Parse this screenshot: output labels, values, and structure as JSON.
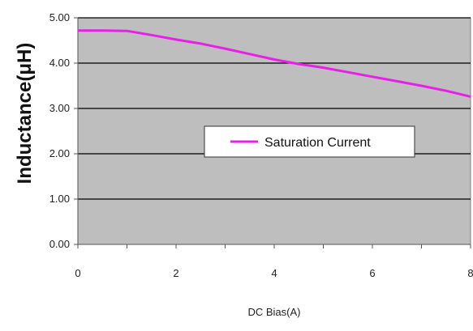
{
  "chart_data": {
    "type": "line",
    "xlabel": "DC Bias(A)",
    "ylabel": "Inductance(μH)",
    "x_ticks": [
      "0",
      "2",
      "4",
      "6",
      "8"
    ],
    "y_ticks": [
      "0.00",
      "1.00",
      "2.00",
      "3.00",
      "4.00",
      "5.00"
    ],
    "xlim": [
      0,
      8
    ],
    "ylim": [
      0,
      5
    ],
    "grid": "horizontal",
    "legend_position": "center-right",
    "series": [
      {
        "name": "Saturation Current",
        "color": "#e81fe8",
        "x": [
          0,
          0.5,
          1.0,
          1.5,
          2.0,
          2.5,
          3.0,
          3.5,
          4.0,
          4.5,
          5.0,
          5.5,
          6.0,
          6.5,
          7.0,
          7.5,
          8.0
        ],
        "y": [
          4.72,
          4.72,
          4.71,
          4.62,
          4.52,
          4.43,
          4.32,
          4.2,
          4.08,
          3.98,
          3.9,
          3.8,
          3.7,
          3.6,
          3.5,
          3.39,
          3.26
        ]
      }
    ],
    "colors": {
      "plot_background": "#bebebe",
      "gridline": "#000000"
    }
  }
}
